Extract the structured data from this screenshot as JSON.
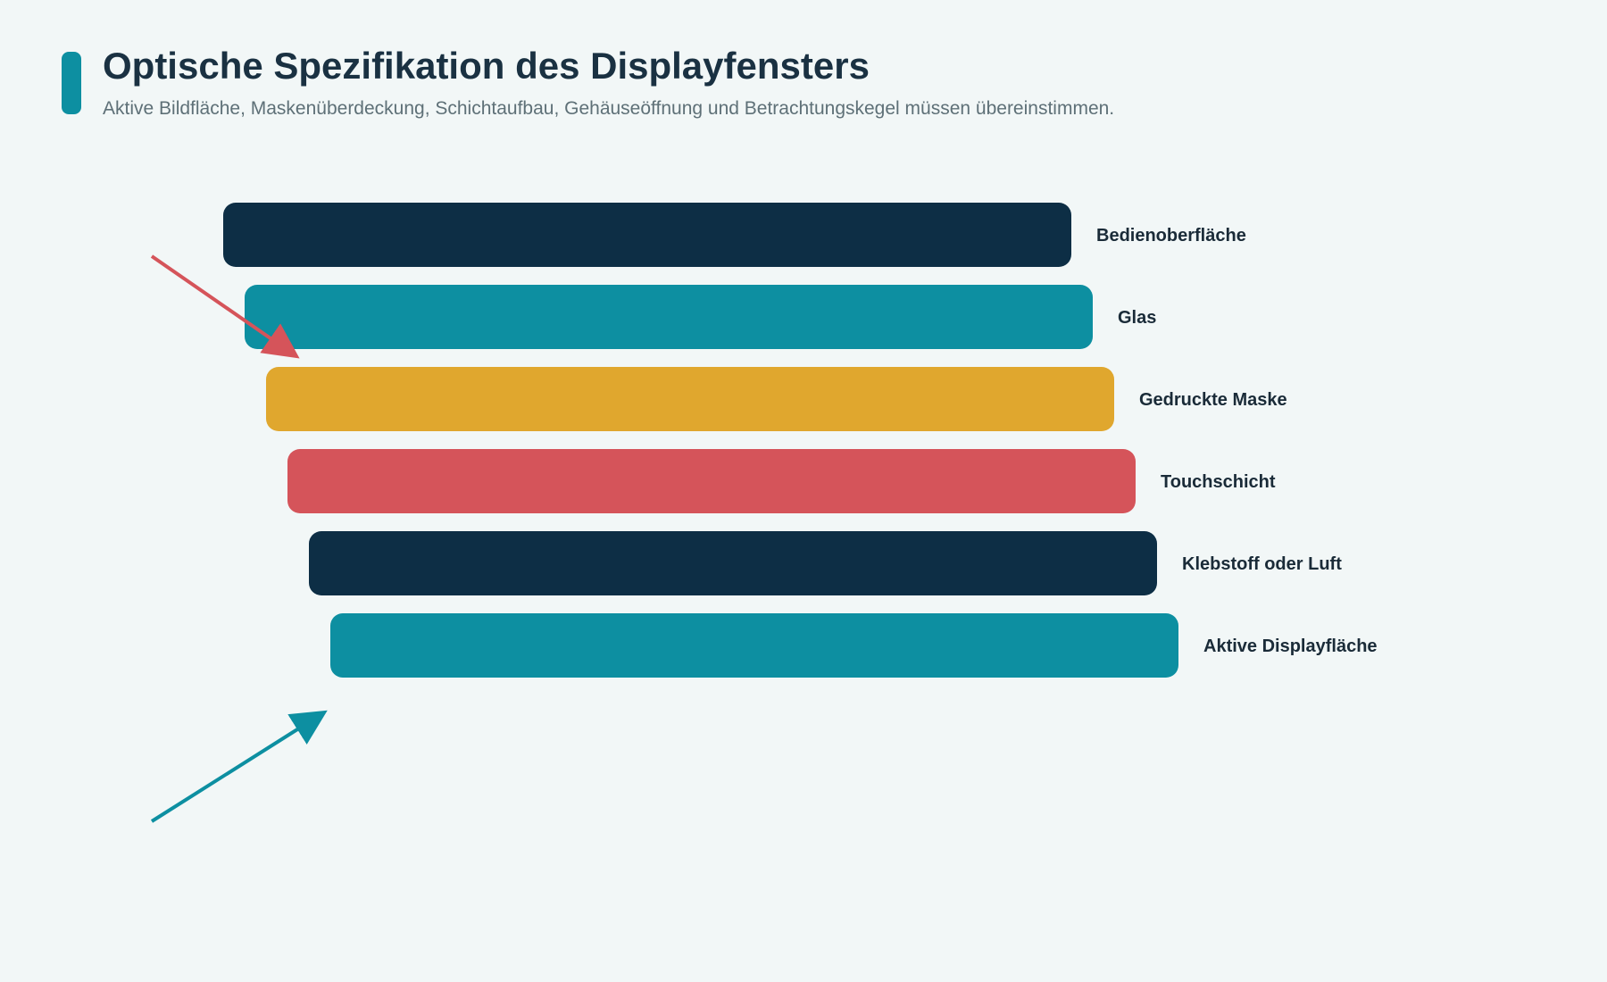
{
  "header": {
    "title": "Optische Spezifikation des Displayfensters",
    "subtitle": "Aktive Bildfläche, Maskenüberdeckung, Schichtaufbau, Gehäuseöffnung und Betrachtungskegel müssen übereinstimmen.",
    "accent_color": "#0d8fa1"
  },
  "layers": [
    {
      "label": "Bedienoberfläche",
      "color": "#0d2e45"
    },
    {
      "label": "Glas",
      "color": "#0d8fa1"
    },
    {
      "label": "Gedruckte Maske",
      "color": "#e0a72e"
    },
    {
      "label": "Touchschicht",
      "color": "#d5545a"
    },
    {
      "label": "Klebstoff oder Luft",
      "color": "#0d2e45"
    },
    {
      "label": "Aktive Displayfläche",
      "color": "#0d8fa1"
    }
  ],
  "arrows": [
    {
      "name": "incoming-light-arrow",
      "color": "#d5545a"
    },
    {
      "name": "viewing-cone-arrow",
      "color": "#0d8fa1"
    }
  ]
}
